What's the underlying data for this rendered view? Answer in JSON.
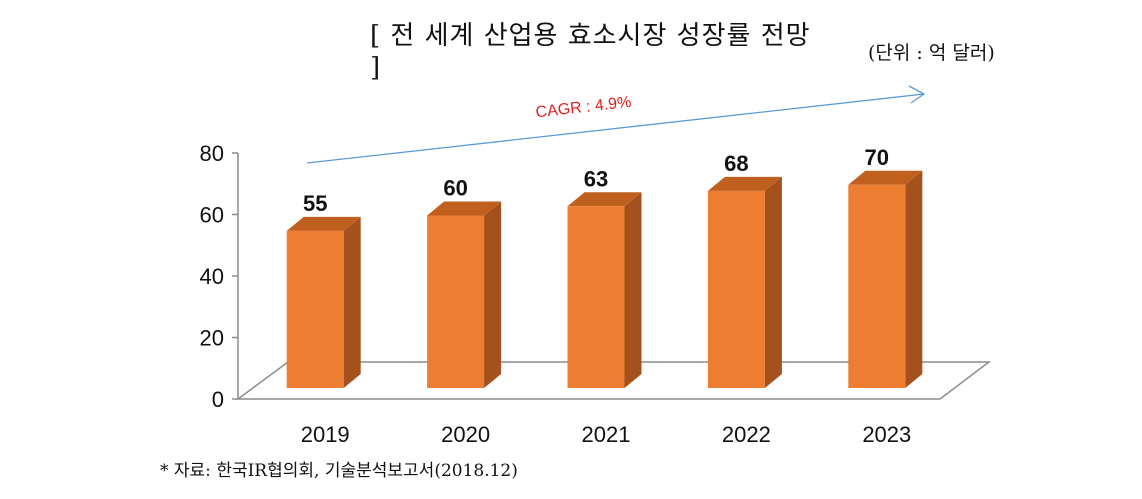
{
  "title": "[ 전 세계 산업용 효소시장 성장률 전망 ]",
  "unit": "(단위 : 억 달러)",
  "source": "* 자료: 한국IR협의회, 기술분석보고서(2018.12)",
  "colors": {
    "bar_front": "#ed7d31",
    "bar_side": "#a5511d",
    "bar_top": "#c0601f",
    "arrow": "#5b9bd5",
    "cagr_text": "#e0201f"
  },
  "chart_data": {
    "type": "bar",
    "categories": [
      "2019",
      "2020",
      "2021",
      "2022",
      "2023"
    ],
    "values": [
      55,
      60,
      63,
      68,
      70
    ],
    "ylim": [
      0,
      80
    ],
    "yticks": [
      "0",
      "20",
      "40",
      "60",
      "80"
    ],
    "annotation": "CAGR : 4.9%",
    "grid": false,
    "legend": "none"
  }
}
